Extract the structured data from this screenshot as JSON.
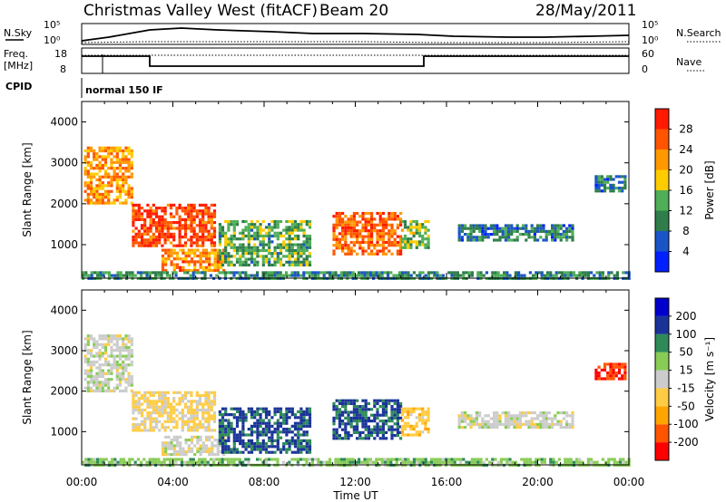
{
  "header": {
    "radar": "Christmas Valley West (fitACF)",
    "beam": "Beam 20",
    "date": "28/May/2011"
  },
  "panel_labels": {
    "nsky": "N.Sky",
    "nsearch": "N.Search",
    "freq_line1": "Freq.",
    "freq_line2": "[MHz]",
    "nave": "Nave",
    "cpid": "CPID",
    "cpid_value": "normal 150 IF"
  },
  "noise_axis": {
    "left_ticks": [
      "10^5",
      "10^0"
    ],
    "right_ticks": [
      "10^5",
      "10^0"
    ]
  },
  "freq_axis": {
    "left_ticks": [
      "18",
      "8"
    ],
    "right_ticks": [
      "60",
      "0"
    ]
  },
  "colors": {
    "power": [
      "#0020ff",
      "#1a55c8",
      "#2e7d4a",
      "#4fae57",
      "#ffcc00",
      "#ff9900",
      "#ff5500",
      "#ff1a00"
    ],
    "velocity": [
      "#ff0000",
      "#ff5500",
      "#ffa500",
      "#ffcc44",
      "#cccccc",
      "#88cc55",
      "#2e8b57",
      "#1a3399",
      "#0000cc"
    ]
  },
  "chart_data": [
    {
      "type": "heatmap",
      "name": "power",
      "xlabel": "",
      "ylabel": "Slant Range [km]",
      "xlim": [
        0,
        24
      ],
      "ylim": [
        180,
        4500
      ],
      "yticks": [
        1000,
        2000,
        3000,
        4000
      ],
      "ytick_labels": [
        "1000",
        "2000",
        "3000",
        "4000"
      ],
      "colorbar": {
        "label": "Power [dB]",
        "ticks": [
          "28",
          "24",
          "20",
          "16",
          "12",
          "8",
          "4"
        ],
        "range": [
          0,
          30
        ]
      },
      "regions": [
        {
          "t": [
            0.1,
            2.2
          ],
          "r": [
            2000,
            3400
          ],
          "value": 20
        },
        {
          "t": [
            2.2,
            5.8
          ],
          "r": [
            1000,
            2000
          ],
          "value": 26
        },
        {
          "t": [
            3.5,
            6.2
          ],
          "r": [
            400,
            900
          ],
          "value": 22
        },
        {
          "t": [
            6.0,
            10.0
          ],
          "r": [
            500,
            1600
          ],
          "value": 12
        },
        {
          "t": [
            11.0,
            14.0
          ],
          "r": [
            800,
            1800
          ],
          "value": 24
        },
        {
          "t": [
            14.0,
            15.2
          ],
          "r": [
            900,
            1600
          ],
          "value": 14
        },
        {
          "t": [
            16.5,
            21.5
          ],
          "r": [
            1100,
            1500
          ],
          "value": 8
        },
        {
          "t": [
            22.5,
            23.8
          ],
          "r": [
            2300,
            2700
          ],
          "value": 8
        },
        {
          "t": [
            0,
            24
          ],
          "r": [
            180,
            350
          ],
          "value": 10
        }
      ]
    },
    {
      "type": "heatmap",
      "name": "velocity",
      "xlabel": "Time UT",
      "ylabel": "Slant Range [km]",
      "xlim": [
        0,
        24
      ],
      "ylim": [
        180,
        4500
      ],
      "xtick_labels": [
        "00:00",
        "04:00",
        "08:00",
        "12:00",
        "16:00",
        "20:00",
        "00:00"
      ],
      "yticks": [
        1000,
        2000,
        3000,
        4000
      ],
      "ytick_labels": [
        "1000",
        "2000",
        "3000",
        "4000"
      ],
      "colorbar": {
        "label": "Velocity [m s^-1]",
        "ticks": [
          "200",
          "100",
          "50",
          "15",
          "-15",
          "-50",
          "-100",
          "-200"
        ],
        "range": [
          -250,
          250
        ]
      },
      "regions": [
        {
          "t": [
            0.1,
            2.2
          ],
          "r": [
            2000,
            3400
          ],
          "value": 0
        },
        {
          "t": [
            2.2,
            5.8
          ],
          "r": [
            1000,
            2000
          ],
          "value": -40
        },
        {
          "t": [
            3.5,
            6.2
          ],
          "r": [
            400,
            900
          ],
          "value": 0
        },
        {
          "t": [
            6.0,
            10.0
          ],
          "r": [
            500,
            1600
          ],
          "value": 150
        },
        {
          "t": [
            11.0,
            14.0
          ],
          "r": [
            800,
            1800
          ],
          "value": 150
        },
        {
          "t": [
            14.0,
            15.2
          ],
          "r": [
            900,
            1600
          ],
          "value": -60
        },
        {
          "t": [
            16.5,
            21.5
          ],
          "r": [
            1100,
            1500
          ],
          "value": 0
        },
        {
          "t": [
            22.5,
            23.8
          ],
          "r": [
            2300,
            2700
          ],
          "value": -200
        },
        {
          "t": [
            0,
            24
          ],
          "r": [
            180,
            350
          ],
          "value": 60
        }
      ]
    }
  ]
}
